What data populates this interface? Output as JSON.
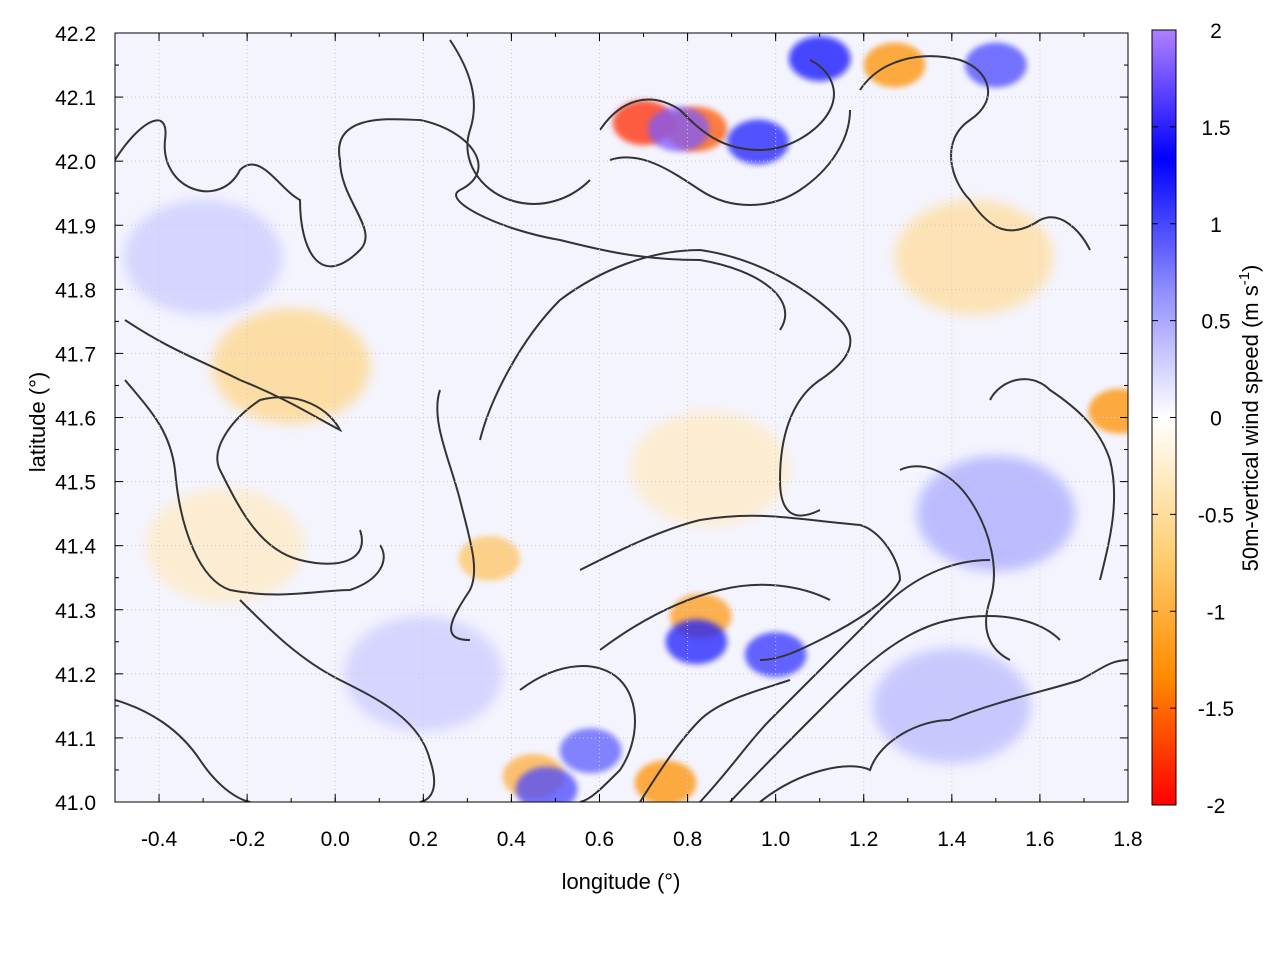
{
  "chart_data": {
    "type": "heatmap",
    "title": "",
    "xlabel": "longitude (°)",
    "ylabel": "latitude (°)",
    "xlim": [
      -0.5,
      1.8
    ],
    "ylim": [
      41.0,
      42.2
    ],
    "x_ticks": [
      "-0.4",
      "-0.2",
      "0.0",
      "0.2",
      "0.4",
      "0.6",
      "0.8",
      "1.0",
      "1.2",
      "1.4",
      "1.6",
      "1.8"
    ],
    "y_ticks": [
      "41.0",
      "41.1",
      "41.2",
      "41.3",
      "41.4",
      "41.5",
      "41.6",
      "41.7",
      "41.8",
      "41.9",
      "42.0",
      "42.1",
      "42.2"
    ],
    "grid": true,
    "colorbar": {
      "label": "50m-vertical wind speed (m s",
      "label_sup": "-1",
      "label_close": ")",
      "range": [
        -2,
        2
      ],
      "ticks": [
        "2",
        "1.5",
        "1",
        "0.5",
        "0",
        "-0.5",
        "-1",
        "-1.5",
        "-2"
      ],
      "palette": [
        "#ff0000",
        "#ff8c00",
        "#ffd27a",
        "#ffffff",
        "#8c8cff",
        "#0000ff",
        "#b080ff"
      ]
    },
    "contour_color": "#333333",
    "features": {
      "strong_positive": [
        {
          "lon": 0.78,
          "lat": 42.05,
          "value": 1.8
        },
        {
          "lon": 0.96,
          "lat": 42.03,
          "value": 1.2
        },
        {
          "lon": 1.1,
          "lat": 42.16,
          "value": 1.3
        },
        {
          "lon": 0.82,
          "lat": 41.25,
          "value": 1.2
        },
        {
          "lon": 1.0,
          "lat": 41.23,
          "value": 1.1
        },
        {
          "lon": 0.48,
          "lat": 41.02,
          "value": 1.0
        },
        {
          "lon": 1.5,
          "lat": 42.15,
          "value": 1.0
        },
        {
          "lon": 0.58,
          "lat": 41.08,
          "value": 0.9
        }
      ],
      "strong_negative": [
        {
          "lon": 0.7,
          "lat": 42.06,
          "value": -1.8
        },
        {
          "lon": 0.82,
          "lat": 42.05,
          "value": -1.6
        },
        {
          "lon": 1.27,
          "lat": 42.15,
          "value": -1.3
        },
        {
          "lon": 0.83,
          "lat": 41.29,
          "value": -1.2
        },
        {
          "lon": 0.75,
          "lat": 41.03,
          "value": -1.3
        },
        {
          "lon": 0.45,
          "lat": 41.04,
          "value": -1.0
        },
        {
          "lon": 1.78,
          "lat": 41.61,
          "value": -1.3
        },
        {
          "lon": 0.35,
          "lat": 41.38,
          "value": -0.8
        }
      ],
      "negative_bands": [
        {
          "lon": -0.1,
          "lat": 41.68,
          "value": -0.6
        },
        {
          "lon": 0.85,
          "lat": 41.52,
          "value": -0.3
        },
        {
          "lon": 1.45,
          "lat": 41.85,
          "value": -0.5
        },
        {
          "lon": -0.25,
          "lat": 41.4,
          "value": -0.3
        }
      ],
      "positive_bands": [
        {
          "lon": 1.5,
          "lat": 41.45,
          "value": 0.5
        },
        {
          "lon": 1.4,
          "lat": 41.15,
          "value": 0.4
        },
        {
          "lon": -0.3,
          "lat": 41.85,
          "value": 0.3
        },
        {
          "lon": 0.2,
          "lat": 41.2,
          "value": 0.3
        }
      ]
    }
  }
}
